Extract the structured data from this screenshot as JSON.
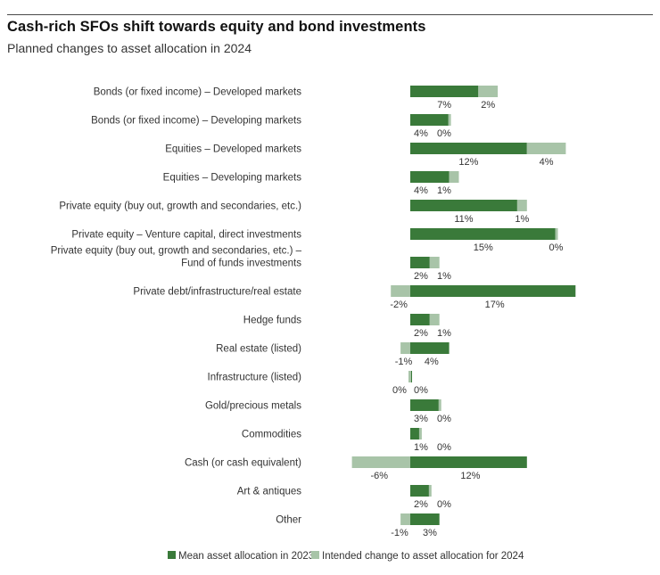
{
  "title": "Cash-rich SFOs shift towards equity and bond investments",
  "subtitle": "Planned changes to asset allocation in 2024",
  "colors": {
    "series_2023": "#3a7a3a",
    "series_2024": "#a8c4a8"
  },
  "chart_data": {
    "type": "bar",
    "orientation": "horizontal",
    "stacked": true,
    "categories": [
      [
        "Bonds (or fixed income) – Developed markets"
      ],
      [
        "Bonds (or fixed income) – Developing markets"
      ],
      [
        "Equities – Developed markets"
      ],
      [
        "Equities – Developing markets"
      ],
      [
        "Private equity (buy out, growth and secondaries, etc.)"
      ],
      [
        "Private equity – Venture capital, direct investments"
      ],
      [
        "Private equity (buy out, growth and secondaries, etc.) –",
        "Fund of funds investments"
      ],
      [
        "Private debt/infrastructure/real estate"
      ],
      [
        "Hedge funds"
      ],
      [
        "Real estate (listed)"
      ],
      [
        "Infrastructure (listed)"
      ],
      [
        "Gold/precious metals"
      ],
      [
        "Commodities"
      ],
      [
        "Cash (or cash equivalent)"
      ],
      [
        "Art & antiques"
      ],
      [
        "Other"
      ]
    ],
    "series": [
      {
        "name": "Mean asset allocation in 2023",
        "values": [
          7,
          4,
          12,
          4,
          11,
          15,
          2,
          17,
          2,
          4,
          0,
          3,
          1,
          12,
          2,
          3
        ],
        "labels": [
          "7%",
          "4%",
          "12%",
          "4%",
          "11%",
          "15%",
          "2%",
          "17%",
          "2%",
          "4%",
          "0%",
          "3%",
          "1%",
          "12%",
          "2%",
          "3%"
        ]
      },
      {
        "name": "Intended change to asset allocation for 2024",
        "values": [
          2,
          0,
          4,
          1,
          1,
          0,
          1,
          -2,
          1,
          -1,
          0,
          0,
          0,
          -6,
          0,
          -1
        ],
        "labels": [
          "2%",
          "0%",
          "4%",
          "1%",
          "1%",
          "0%",
          "1%",
          "-2%",
          "1%",
          "-1%",
          "0%",
          "0%",
          "0%",
          "-6%",
          "0%",
          "-1%"
        ]
      }
    ],
    "legend": "bottom"
  }
}
